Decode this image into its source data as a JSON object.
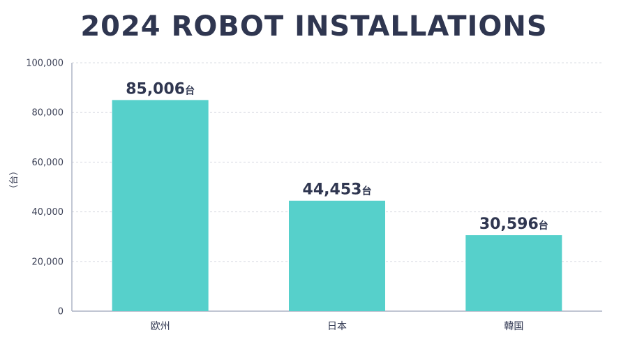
{
  "chart_data": {
    "type": "bar",
    "title": "2024 ROBOT INSTALLATIONS",
    "xlabel": "",
    "ylabel": "（台）",
    "categories": [
      "欧州",
      "日本",
      "韓国"
    ],
    "values": [
      85006,
      44453,
      30596
    ],
    "value_labels": [
      "85,006",
      "44,453",
      "30,596"
    ],
    "value_unit": "台",
    "ylim": [
      0,
      100000
    ],
    "yticks": [
      0,
      20000,
      40000,
      60000,
      80000,
      100000
    ],
    "ytick_labels": [
      "0",
      "20,000",
      "40,000",
      "60,000",
      "80,000",
      "100,000"
    ],
    "grid": true,
    "legend": "none",
    "bar_color": "#56d0cb",
    "text_color": "#2f3650",
    "grid_color": "#d9dce3",
    "axis_color": "#9aa2b8"
  }
}
